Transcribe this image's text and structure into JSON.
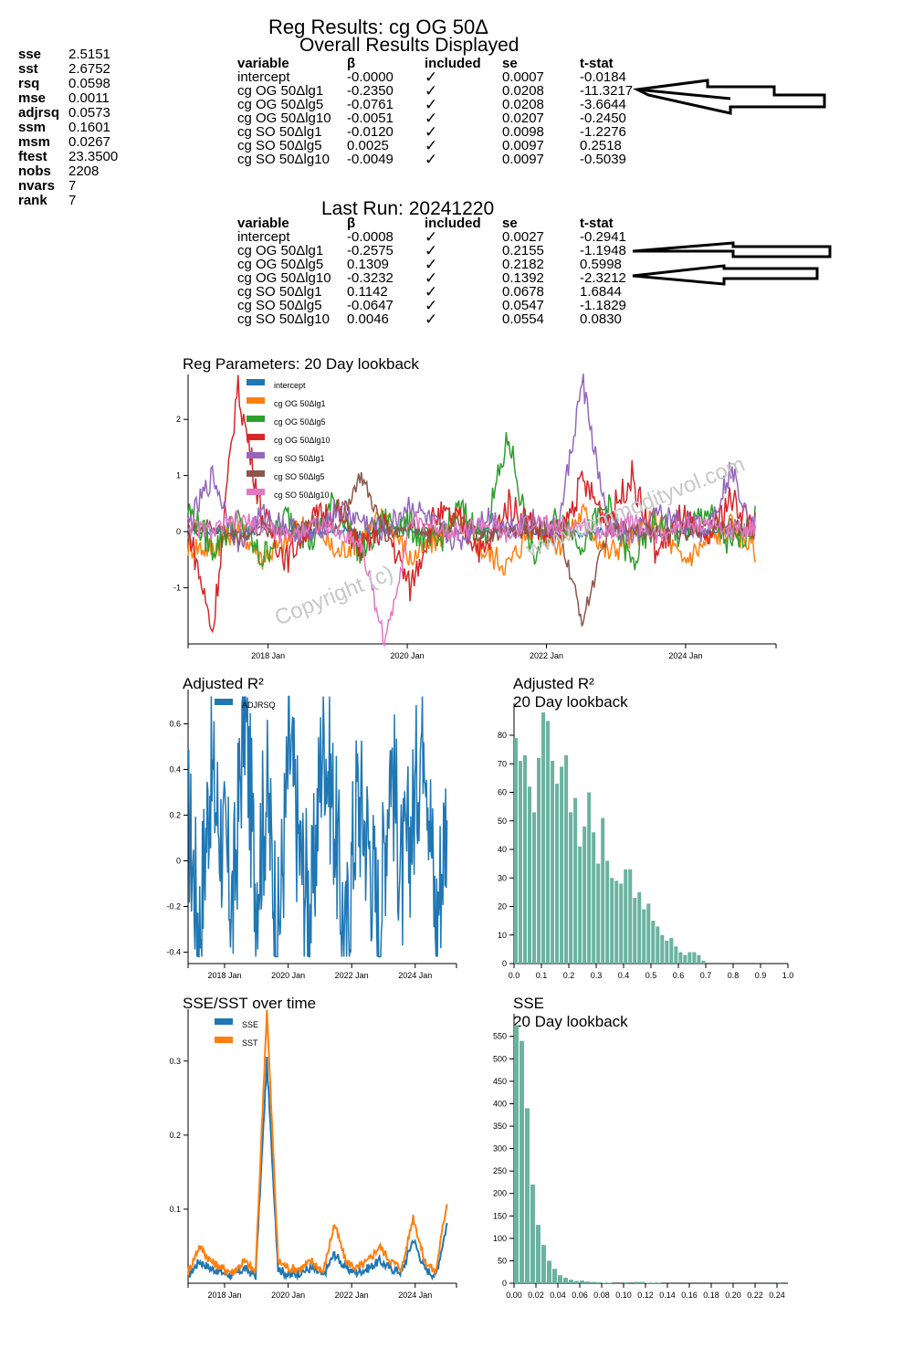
{
  "stats": [
    {
      "k": "sse",
      "v": "2.5151"
    },
    {
      "k": "sst",
      "v": "2.6752"
    },
    {
      "k": "rsq",
      "v": "0.0598"
    },
    {
      "k": "mse",
      "v": "0.0011"
    },
    {
      "k": "adjrsq",
      "v": "0.0573"
    },
    {
      "k": "ssm",
      "v": "0.1601"
    },
    {
      "k": "msm",
      "v": "0.0267"
    },
    {
      "k": "ftest",
      "v": "23.3500"
    },
    {
      "k": "nobs",
      "v": "2208"
    },
    {
      "k": "nvars",
      "v": "7"
    },
    {
      "k": "rank",
      "v": "7"
    }
  ],
  "titles": {
    "main": "Reg Results: cg OG 50Δ",
    "overall": "Overall Results Displayed",
    "last_run": "Last Run: 20241220"
  },
  "table_headers": [
    "variable",
    "β",
    "included",
    "se",
    "t-stat"
  ],
  "overall_table": [
    [
      "intercept",
      "-0.0000",
      "✓",
      "0.0007",
      "-0.0184"
    ],
    [
      "cg OG 50Δlg1",
      "-0.2350",
      "✓",
      "0.0208",
      "-11.3217"
    ],
    [
      "cg OG 50Δlg5",
      "-0.0761",
      "✓",
      "0.0208",
      "-3.6644"
    ],
    [
      "cg OG 50Δlg10",
      "-0.0051",
      "✓",
      "0.0207",
      "-0.2450"
    ],
    [
      "cg SO 50Δlg1",
      "-0.0120",
      "✓",
      "0.0098",
      "-1.2276"
    ],
    [
      "cg SO 50Δlg5",
      "0.0025",
      "✓",
      "0.0097",
      "0.2518"
    ],
    [
      "cg SO 50Δlg10",
      "-0.0049",
      "✓",
      "0.0097",
      "-0.5039"
    ]
  ],
  "last_table": [
    [
      "intercept",
      "-0.0008",
      "✓",
      "0.0027",
      "-0.2941"
    ],
    [
      "cg OG 50Δlg1",
      "-0.2575",
      "✓",
      "0.2155",
      "-1.1948"
    ],
    [
      "cg OG 50Δlg5",
      "0.1309",
      "✓",
      "0.2182",
      "0.5998"
    ],
    [
      "cg OG 50Δlg10",
      "-0.3232",
      "✓",
      "0.1392",
      "-2.3212"
    ],
    [
      "cg SO 50Δlg1",
      "0.1142",
      "✓",
      "0.0678",
      "1.6844"
    ],
    [
      "cg SO 50Δlg5",
      "-0.0647",
      "✓",
      "0.0547",
      "-1.1829"
    ],
    [
      "cg SO 50Δlg10",
      "0.0046",
      "✓",
      "0.0554",
      "0.0830"
    ]
  ],
  "watermark": {
    "site": "www.commodityvol.com",
    "copyright": "Copyright (c)"
  },
  "chart_data": [
    {
      "type": "line",
      "title": "Reg Parameters: 20 Day lookback",
      "x_ticks": [
        "2018 Jan",
        "2020 Jan",
        "2022 Jan",
        "2024 Jan"
      ],
      "x_tick_years": [
        2018,
        2020,
        2022,
        2024
      ],
      "x_range": [
        2016.85,
        2025.3
      ],
      "ylim": [
        -2.0,
        2.8
      ],
      "y_ticks": [
        -1,
        0,
        1,
        2
      ],
      "legend": "top-left",
      "series": [
        {
          "name": "intercept",
          "color": "#1f77b4",
          "values": [
            0.02,
            0.01,
            -0.03,
            0.03,
            0.0,
            -0.02,
            0.05,
            -0.04,
            0.02,
            0.01,
            -0.05,
            0.03,
            0.0,
            0.04,
            -0.02,
            0.01,
            -0.03,
            0.02,
            0.0,
            -0.01,
            0.03,
            -0.02,
            0.01,
            0.0
          ]
        },
        {
          "name": "cg OG 50Δlg1",
          "color": "#ff7f0e",
          "values": [
            -0.25,
            -0.3,
            0.1,
            -0.45,
            -0.2,
            0.25,
            -0.4,
            -0.1,
            0.3,
            -0.5,
            -0.15,
            0.2,
            -0.35,
            -0.6,
            0.15,
            -0.25,
            0.35,
            -0.4,
            -0.1,
            0.25,
            -0.55,
            -0.2,
            0.1,
            -0.3
          ]
        },
        {
          "name": "cg OG 50Δlg5",
          "color": "#2ca02c",
          "values": [
            0.4,
            -0.3,
            0.2,
            -0.5,
            0.3,
            -0.2,
            0.6,
            -0.4,
            0.2,
            0.1,
            -0.3,
            0.4,
            -0.1,
            1.7,
            -0.5,
            0.3,
            -0.2,
            0.5,
            -0.6,
            0.2,
            -0.1,
            0.4,
            -0.3,
            0.2
          ]
        },
        {
          "name": "cg OG 50Δlg10",
          "color": "#d62728",
          "values": [
            0.1,
            -1.8,
            2.6,
            0.3,
            -0.5,
            0.2,
            0.4,
            -0.3,
            0.1,
            -1.0,
            0.3,
            0.2,
            -0.4,
            0.5,
            0.1,
            -0.2,
            0.9,
            0.2,
            1.0,
            -0.4,
            0.3,
            -0.2,
            0.6,
            0.1
          ]
        },
        {
          "name": "cg SO 50Δlg1",
          "color": "#9467bd",
          "values": [
            0.1,
            1.0,
            -0.2,
            0.3,
            0.1,
            -0.1,
            0.4,
            0.2,
            0.0,
            0.5,
            0.1,
            -0.2,
            0.3,
            0.1,
            0.2,
            0.0,
            2.7,
            0.1,
            -0.1,
            0.3,
            0.2,
            0.0,
            1.1,
            0.1
          ]
        },
        {
          "name": "cg SO 50Δlg5",
          "color": "#8c564b",
          "values": [
            0.0,
            0.1,
            -0.1,
            0.05,
            0.0,
            0.2,
            0.05,
            1.0,
            -0.05,
            0.1,
            0.0,
            0.15,
            -0.1,
            0.0,
            0.05,
            0.1,
            -1.6,
            0.0,
            0.1,
            -0.05,
            0.0,
            0.05,
            0.1,
            0.0
          ]
        },
        {
          "name": "cg SO 50Δlg10",
          "color": "#e377c2",
          "values": [
            0.1,
            0.0,
            0.2,
            0.1,
            -0.1,
            0.15,
            0.0,
            -0.2,
            -2.0,
            0.2,
            0.1,
            0.0,
            0.15,
            -0.1,
            0.2,
            0.05,
            0.1,
            0.0,
            0.2,
            -0.1,
            0.1,
            0.15,
            0.0,
            0.1
          ]
        }
      ]
    },
    {
      "type": "line",
      "title": "Adjusted R²",
      "x_ticks": [
        "2018 Jan",
        "2020 Jan",
        "2022 Jan",
        "2024 Jan"
      ],
      "x_tick_years": [
        2018,
        2020,
        2022,
        2024
      ],
      "x_range": [
        2016.85,
        2025.3
      ],
      "ylim": [
        -0.45,
        0.75
      ],
      "y_ticks": [
        -0.4,
        -0.2,
        0.0,
        0.2,
        0.4,
        0.6
      ],
      "legend": "top-left",
      "series": [
        {
          "name": "ADJRSQ",
          "color": "#1f77b4",
          "values": [
            0.2,
            -0.3,
            0.4,
            0.1,
            -0.2,
            0.7,
            -0.1,
            0.3,
            -0.35,
            0.5,
            0.0,
            -0.2,
            0.6,
            0.2,
            -0.4,
            0.3,
            0.1,
            -0.3,
            0.5,
            -0.1,
            0.2,
            0.7,
            -0.3,
            0.25
          ]
        }
      ]
    },
    {
      "type": "bar",
      "title": "Adjusted R²\n20 Day lookback",
      "x_ticks": [
        "0.0",
        "0.1",
        "0.2",
        "0.3",
        "0.4",
        "0.5",
        "0.6",
        "0.7",
        "0.8",
        "0.9",
        "1.0"
      ],
      "x_range": [
        0.0,
        1.0
      ],
      "ylim": [
        0,
        88
      ],
      "y_ticks": [
        0,
        10,
        20,
        30,
        40,
        50,
        60,
        70,
        80
      ],
      "bin_width": 0.0167,
      "values": [
        79,
        71,
        73,
        62,
        53,
        72,
        88,
        85,
        71,
        63,
        69,
        73,
        53,
        58,
        41,
        48,
        60,
        46,
        35,
        51,
        36,
        30,
        29,
        28,
        33,
        33,
        23,
        25,
        19,
        21,
        15,
        13,
        10,
        8,
        9,
        6,
        4,
        3,
        4,
        4,
        3,
        1
      ],
      "color": "#6ab3a0"
    },
    {
      "type": "line",
      "title": "SSE/SST over time",
      "x_ticks": [
        "2018 Jan",
        "2020 Jan",
        "2022 Jan",
        "2024 Jan"
      ],
      "x_tick_years": [
        2018,
        2020,
        2022,
        2024
      ],
      "x_range": [
        2016.85,
        2025.3
      ],
      "ylim": [
        0,
        0.37
      ],
      "y_ticks": [
        0.1,
        0.2,
        0.3
      ],
      "legend": "top-left",
      "series": [
        {
          "name": "SSE",
          "color": "#1f77b4",
          "values": [
            0.01,
            0.03,
            0.02,
            0.015,
            0.01,
            0.02,
            0.01,
            0.3,
            0.02,
            0.01,
            0.015,
            0.02,
            0.01,
            0.04,
            0.02,
            0.015,
            0.02,
            0.03,
            0.02,
            0.015,
            0.06,
            0.02,
            0.01,
            0.08
          ]
        },
        {
          "name": "SST",
          "color": "#ff7f0e",
          "values": [
            0.015,
            0.05,
            0.03,
            0.02,
            0.015,
            0.03,
            0.015,
            0.37,
            0.03,
            0.02,
            0.02,
            0.03,
            0.015,
            0.08,
            0.03,
            0.02,
            0.03,
            0.05,
            0.03,
            0.02,
            0.09,
            0.03,
            0.015,
            0.11
          ]
        }
      ]
    },
    {
      "type": "bar",
      "title": "SSE\n20 Day lookback",
      "x_ticks": [
        "0.00",
        "0.02",
        "0.04",
        "0.06",
        "0.08",
        "0.10",
        "0.12",
        "0.14",
        "0.16",
        "0.18",
        "0.20",
        "0.22",
        "0.24"
      ],
      "x_range": [
        0.0,
        0.25
      ],
      "ylim": [
        0,
        580
      ],
      "y_ticks": [
        0,
        50,
        100,
        150,
        200,
        250,
        300,
        350,
        400,
        450,
        500,
        550
      ],
      "bin_width": 0.005,
      "values": [
        575,
        540,
        390,
        220,
        130,
        85,
        50,
        32,
        18,
        12,
        8,
        5,
        6,
        4,
        3,
        2,
        1,
        1,
        0,
        0,
        2,
        0,
        3,
        3,
        1,
        1,
        1,
        0,
        0,
        0,
        0,
        0,
        0,
        0,
        0,
        0,
        0,
        0,
        0,
        0,
        0,
        0,
        0,
        0,
        0,
        0,
        0,
        0,
        2,
        0
      ],
      "color": "#6ab3a0"
    }
  ]
}
